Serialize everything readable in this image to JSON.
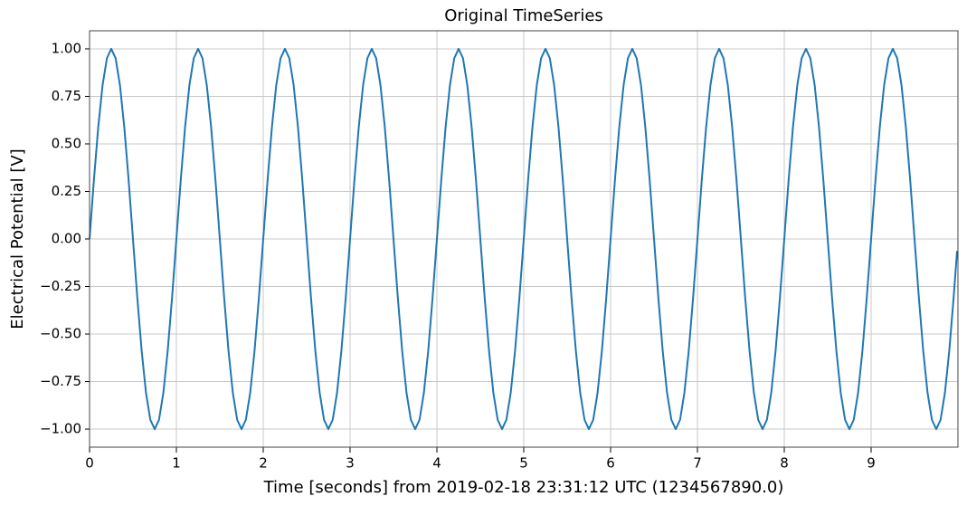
{
  "chart_data": {
    "type": "line",
    "title": "Original TimeSeries",
    "x_label": "Time [seconds] from 2019-02-18 23:31:12 UTC (1234567890.0)",
    "y_label": "Electrical Potential [V]",
    "xlim": [
      0,
      10
    ],
    "ylim": [
      -1.095,
      1.095
    ],
    "xticks": [
      0,
      1,
      2,
      3,
      4,
      5,
      6,
      7,
      8,
      9
    ],
    "yticks": [
      {
        "value": -1,
        "label": "−1.00"
      },
      {
        "value": -0.75,
        "label": "−0.75"
      },
      {
        "value": -0.5,
        "label": "−0.50"
      },
      {
        "value": -0.25,
        "label": "−0.25"
      },
      {
        "value": 0,
        "label": "0.00"
      },
      {
        "value": 0.25,
        "label": "0.25"
      },
      {
        "value": 0.5,
        "label": "0.50"
      },
      {
        "value": 0.75,
        "label": "0.75"
      },
      {
        "value": 1,
        "label": "1.00"
      }
    ],
    "grid": true,
    "x": [
      0,
      0.05,
      0.1,
      0.15,
      0.2,
      0.25,
      0.3,
      0.35,
      0.4,
      0.45,
      0.5,
      0.55,
      0.6,
      0.65,
      0.7,
      0.75,
      0.8,
      0.85,
      0.9,
      0.95,
      1,
      1.05,
      1.1,
      1.15,
      1.2,
      1.25,
      1.3,
      1.35,
      1.4,
      1.45,
      1.5,
      1.55,
      1.6,
      1.65,
      1.7,
      1.75,
      1.8,
      1.85,
      1.9,
      1.95,
      2,
      2.05,
      2.1,
      2.15,
      2.2,
      2.25,
      2.3,
      2.35,
      2.4,
      2.45,
      2.5,
      2.55,
      2.6,
      2.65,
      2.7,
      2.75,
      2.8,
      2.85,
      2.9,
      2.95,
      3,
      3.05,
      3.1,
      3.15,
      3.2,
      3.25,
      3.3,
      3.35,
      3.4,
      3.45,
      3.5,
      3.55,
      3.6,
      3.65,
      3.7,
      3.75,
      3.8,
      3.85,
      3.9,
      3.95,
      4,
      4.05,
      4.1,
      4.15,
      4.2,
      4.25,
      4.3,
      4.35,
      4.4,
      4.45,
      4.5,
      4.55,
      4.6,
      4.65,
      4.7,
      4.75,
      4.8,
      4.85,
      4.9,
      4.95,
      5,
      5.05,
      5.1,
      5.15,
      5.2,
      5.25,
      5.3,
      5.35,
      5.4,
      5.45,
      5.5,
      5.55,
      5.6,
      5.65,
      5.7,
      5.75,
      5.8,
      5.85,
      5.9,
      5.95,
      6,
      6.05,
      6.1,
      6.15,
      6.2,
      6.25,
      6.3,
      6.35,
      6.4,
      6.45,
      6.5,
      6.55,
      6.6,
      6.65,
      6.7,
      6.75,
      6.8,
      6.85,
      6.9,
      6.95,
      7,
      7.05,
      7.1,
      7.15,
      7.2,
      7.25,
      7.3,
      7.35,
      7.4,
      7.45,
      7.5,
      7.55,
      7.6,
      7.65,
      7.7,
      7.75,
      7.8,
      7.85,
      7.9,
      7.95,
      8,
      8.05,
      8.1,
      8.15,
      8.2,
      8.25,
      8.3,
      8.35,
      8.4,
      8.45,
      8.5,
      8.55,
      8.6,
      8.65,
      8.7,
      8.75,
      8.8,
      8.85,
      8.9,
      8.95,
      9,
      9.05,
      9.1,
      9.15,
      9.2,
      9.25,
      9.3,
      9.35,
      9.4,
      9.45,
      9.5,
      9.55,
      9.6,
      9.65,
      9.7,
      9.75,
      9.8,
      9.85,
      9.9,
      9.95,
      9.99
    ],
    "series": [
      {
        "color": "#1f77b4",
        "values": [
          0,
          0.309,
          0.588,
          0.809,
          0.951,
          1,
          0.951,
          0.809,
          0.588,
          0.309,
          0,
          -0.309,
          -0.588,
          -0.809,
          -0.951,
          -1,
          -0.951,
          -0.809,
          -0.588,
          -0.309,
          0,
          0.309,
          0.588,
          0.809,
          0.951,
          1,
          0.951,
          0.809,
          0.588,
          0.309,
          0,
          -0.309,
          -0.588,
          -0.809,
          -0.951,
          -1,
          -0.951,
          -0.809,
          -0.588,
          -0.309,
          0,
          0.309,
          0.588,
          0.809,
          0.951,
          1,
          0.951,
          0.809,
          0.588,
          0.309,
          0,
          -0.309,
          -0.588,
          -0.809,
          -0.951,
          -1,
          -0.951,
          -0.809,
          -0.588,
          -0.309,
          0,
          0.309,
          0.588,
          0.809,
          0.951,
          1,
          0.951,
          0.809,
          0.588,
          0.309,
          0,
          -0.309,
          -0.588,
          -0.809,
          -0.951,
          -1,
          -0.951,
          -0.809,
          -0.588,
          -0.309,
          0,
          0.309,
          0.588,
          0.809,
          0.951,
          1,
          0.951,
          0.809,
          0.588,
          0.309,
          0,
          -0.309,
          -0.588,
          -0.809,
          -0.951,
          -1,
          -0.951,
          -0.809,
          -0.588,
          -0.309,
          0,
          0.309,
          0.588,
          0.809,
          0.951,
          1,
          0.951,
          0.809,
          0.588,
          0.309,
          0,
          -0.309,
          -0.588,
          -0.809,
          -0.951,
          -1,
          -0.951,
          -0.809,
          -0.588,
          -0.309,
          0,
          0.309,
          0.588,
          0.809,
          0.951,
          1,
          0.951,
          0.809,
          0.588,
          0.309,
          0,
          -0.309,
          -0.588,
          -0.809,
          -0.951,
          -1,
          -0.951,
          -0.809,
          -0.588,
          -0.309,
          0,
          0.309,
          0.588,
          0.809,
          0.951,
          1,
          0.951,
          0.809,
          0.588,
          0.309,
          0,
          -0.309,
          -0.588,
          -0.809,
          -0.951,
          -1,
          -0.951,
          -0.809,
          -0.588,
          -0.309,
          0,
          0.309,
          0.588,
          0.809,
          0.951,
          1,
          0.951,
          0.809,
          0.588,
          0.309,
          0,
          -0.309,
          -0.588,
          -0.809,
          -0.951,
          -1,
          -0.951,
          -0.809,
          -0.588,
          -0.309,
          0,
          0.309,
          0.588,
          0.809,
          0.951,
          1,
          0.951,
          0.809,
          0.588,
          0.309,
          0,
          -0.309,
          -0.588,
          -0.809,
          -0.951,
          -1,
          -0.951,
          -0.809,
          -0.588,
          -0.309,
          -0.063
        ]
      }
    ]
  }
}
